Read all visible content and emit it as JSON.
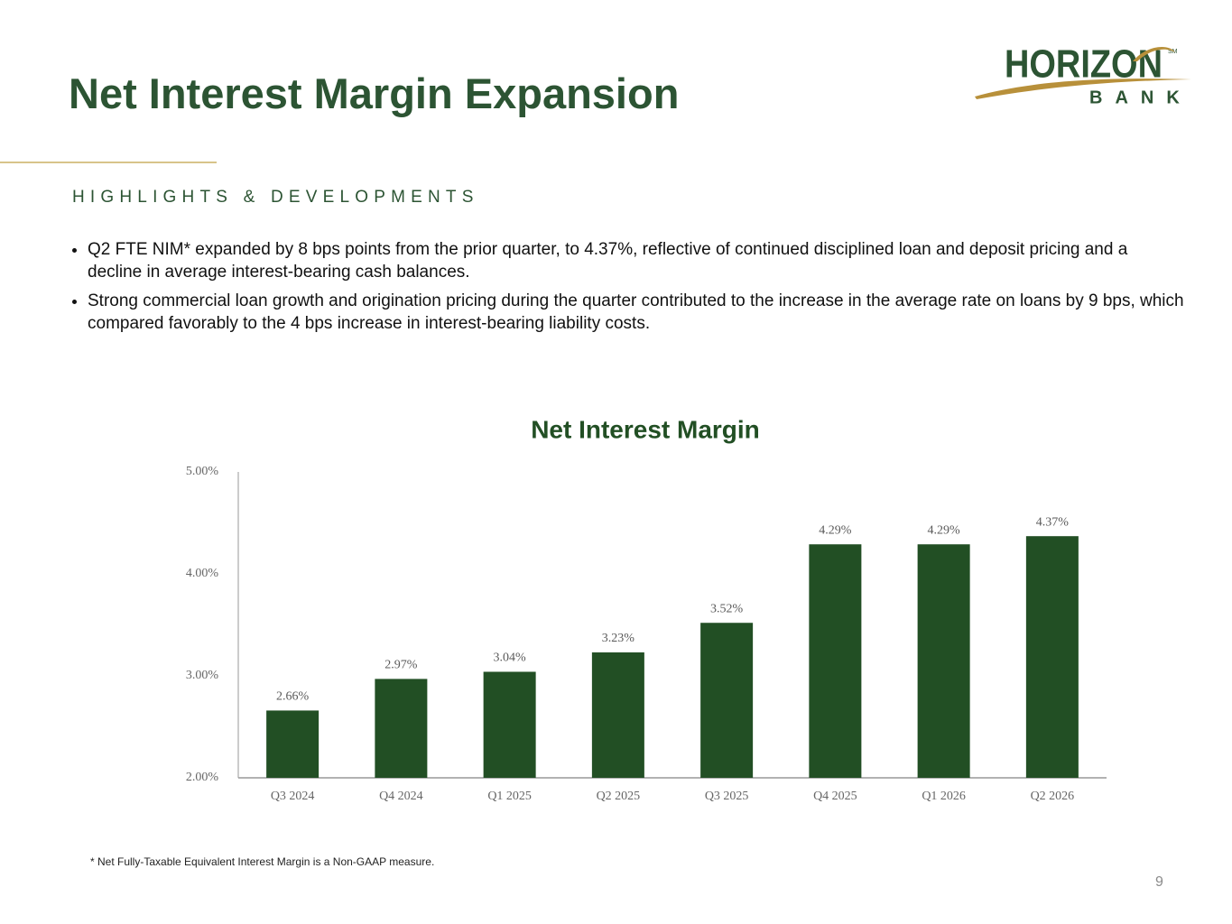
{
  "header": {
    "title": "Net Interest Margin Expansion"
  },
  "logo": {
    "name": "HORIZON",
    "sub": "BANK",
    "mark": "SM"
  },
  "highlights": {
    "heading": "HIGHLIGHTS & DEVELOPMENTS",
    "bullets": [
      "Q2 FTE NIM* expanded by 8 bps points from the prior quarter, to 4.37%, reflective of continued disciplined loan and deposit pricing and a decline in average interest-bearing cash balances.",
      "Strong commercial loan growth and origination pricing during the quarter contributed to the increase in the average rate on loans by 9 bps, which compared favorably to the 4 bps increase in interest-bearing liability costs."
    ]
  },
  "chart_data": {
    "type": "bar",
    "title": "Net Interest Margin",
    "categories": [
      "Q3 2024",
      "Q4 2024",
      "Q1 2025",
      "Q2 2025",
      "Q3 2025",
      "Q4 2025",
      "Q1 2026",
      "Q2 2026"
    ],
    "values": [
      2.66,
      2.97,
      3.04,
      3.23,
      3.52,
      4.29,
      4.29,
      4.37
    ],
    "value_labels": [
      "2.66%",
      "2.97%",
      "3.04%",
      "3.23%",
      "3.52%",
      "4.29%",
      "4.29%",
      "4.37%"
    ],
    "color": "#224f24",
    "ylim": [
      2,
      5
    ],
    "yticks": [
      {
        "value": 2,
        "label": "2.00%"
      },
      {
        "value": 3,
        "label": "3.00%"
      },
      {
        "value": 4,
        "label": "4.00%"
      },
      {
        "value": 5,
        "label": "5.00%"
      }
    ],
    "grid": false
  },
  "footnote": "* Net Fully-Taxable Equivalent Interest Margin is a Non-GAAP measure.",
  "page_number": "9"
}
